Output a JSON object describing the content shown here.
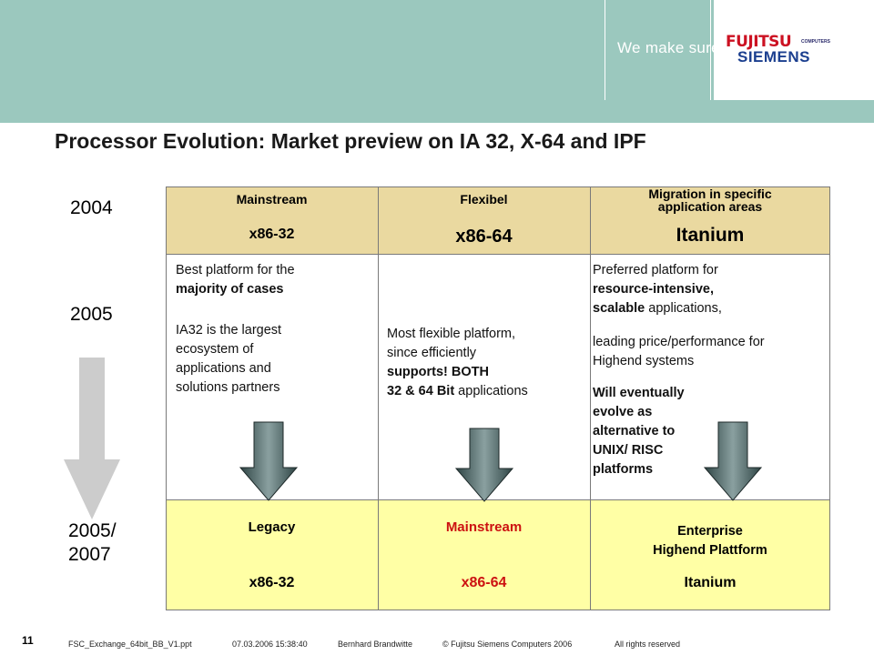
{
  "header": {
    "tagline": "We make sure",
    "logo_text_1": "FUJITSU",
    "logo_text_2": "COMPUTERS",
    "logo_text_3": "SIEMENS"
  },
  "slide": {
    "title": "Processor Evolution: Market preview on IA 32, X-64 and IPF"
  },
  "years": {
    "y2004": "2004",
    "y2005": "2005",
    "y2005_2007_line1": "2005/",
    "y2005_2007_line2": "2007"
  },
  "columns": [
    {
      "category": "Mainstream",
      "product": "x86-32",
      "details_p1_a": "Best  platform for the",
      "details_p1_b": "majority of cases",
      "details_p2": [
        "IA32 is the largest",
        "ecosystem of",
        "applications and",
        "solutions partners"
      ],
      "future_category": "Legacy",
      "future_product": "x86-32"
    },
    {
      "category": "Flexibel",
      "product": "x86-64",
      "details_l1": "Most flexible platform,",
      "details_l2": "since efficiently",
      "details_l3": "supports! BOTH",
      "details_l4_bold": "32 & 64 Bit",
      "details_l4_rest": " applications",
      "future_category": "Mainstream",
      "future_product": "x86-64"
    },
    {
      "category_l1": "Migration in specific",
      "category_l2": "application areas",
      "product": "Itanium",
      "details_l1": "Preferred  platform for",
      "details_l2_bold": "resource-intensive,",
      "details_l3_bold": "scalable",
      "details_l3_rest": " applications,",
      "details_l4": "leading price/performance for",
      "details_l5": "Highend systems",
      "details_bold_lines": [
        "Will eventually",
        "evolve as",
        "alternative to",
        "UNIX/ RISC",
        "platforms"
      ],
      "future_category_l1": "Enterprise",
      "future_category_l2": "Highend Plattform",
      "future_product": "Itanium"
    }
  ],
  "footer": {
    "page_number": "11",
    "filename": "FSC_Exchange_64bit_BB_V1.ppt",
    "datetime": "07.03.2006 15:38:40",
    "author": "Bernhard Brandwitte",
    "copyright": "© Fujitsu Siemens Computers 2006",
    "rights": "All rights reserved"
  },
  "colors": {
    "header_band": "#9bc8be",
    "top_row": "#ead9a0",
    "bottom_row": "#ffffa5",
    "accent_red": "#cc1111",
    "arrow_gray": "#cccccc",
    "arrow_dark": "#3a4d4d"
  },
  "icons": {
    "timeline_arrow": "down-arrow-icon",
    "column_arrows": "down-arrow-icon"
  }
}
